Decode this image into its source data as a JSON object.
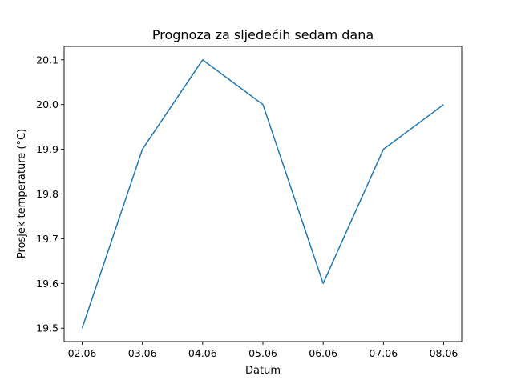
{
  "chart_data": {
    "type": "line",
    "title": "Prognoza za sljedećih sedam dana",
    "xlabel": "Datum",
    "ylabel": "Prosjek temperature (°C)",
    "categories": [
      "02.06",
      "03.06",
      "04.06",
      "05.06",
      "06.06",
      "07.06",
      "08.06"
    ],
    "series": [
      {
        "values": [
          19.5,
          19.9,
          20.1,
          20.0,
          19.6,
          19.9,
          20.0
        ]
      }
    ],
    "yticks": [
      "19.5",
      "19.6",
      "19.7",
      "19.8",
      "19.9",
      "20.0",
      "20.1"
    ],
    "ylim": [
      19.47,
      20.13
    ],
    "grid": false,
    "line_color": "#1f77b4"
  }
}
